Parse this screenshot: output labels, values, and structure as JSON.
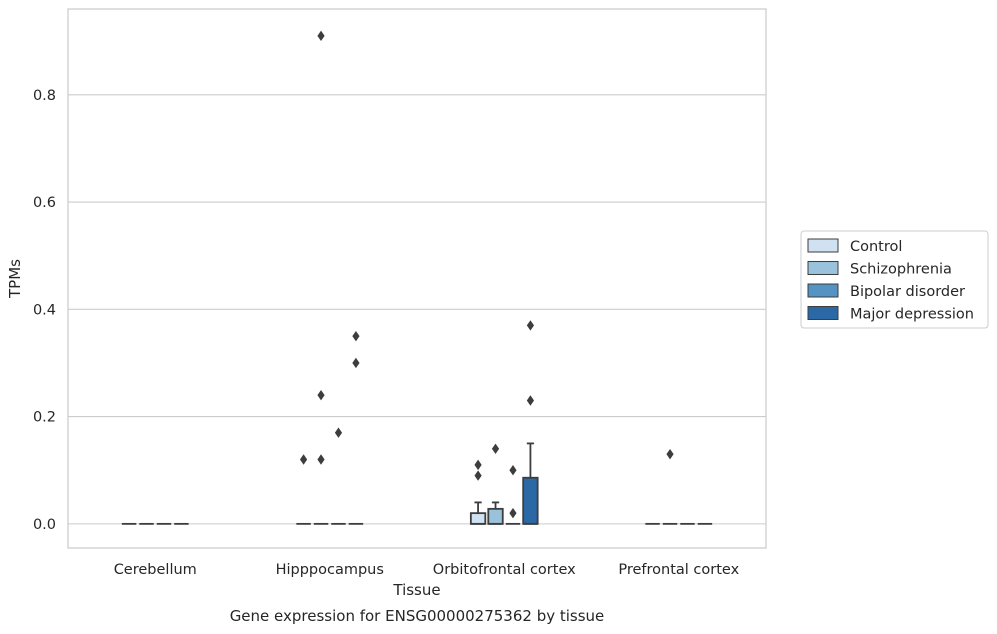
{
  "chart_data": {
    "type": "box",
    "title": "",
    "caption": "Gene expression for ENSG00000275362 by tissue",
    "xlabel": "Tissue",
    "ylabel": "TPMs",
    "ylim": [
      -0.045,
      0.96
    ],
    "yticks": [
      0.0,
      0.2,
      0.4,
      0.6,
      0.8
    ],
    "ytick_labels": [
      "0.0",
      "0.2",
      "0.4",
      "0.6",
      "0.8"
    ],
    "categories": [
      "Cerebellum",
      "Hipppocampus",
      "Orbitofrontal cortex",
      "Prefrontal cortex"
    ],
    "grid": "horizontal",
    "legend_position": "right",
    "series": [
      {
        "name": "Control",
        "color": "#d0e1f2",
        "boxes": [
          {
            "q1": 0,
            "median": 0,
            "q3": 0,
            "whisker_low": 0,
            "whisker_high": 0,
            "outliers": []
          },
          {
            "q1": 0,
            "median": 0,
            "q3": 0,
            "whisker_low": 0,
            "whisker_high": 0,
            "outliers": [
              0.12
            ]
          },
          {
            "q1": 0,
            "median": 0,
            "q3": 0.02,
            "whisker_low": 0,
            "whisker_high": 0.04,
            "outliers": [
              0.09,
              0.11
            ]
          },
          {
            "q1": 0,
            "median": 0,
            "q3": 0,
            "whisker_low": 0,
            "whisker_high": 0,
            "outliers": []
          }
        ]
      },
      {
        "name": "Schizophrenia",
        "color": "#9ac2dd",
        "boxes": [
          {
            "q1": 0,
            "median": 0,
            "q3": 0,
            "whisker_low": 0,
            "whisker_high": 0,
            "outliers": []
          },
          {
            "q1": 0,
            "median": 0,
            "q3": 0,
            "whisker_low": 0,
            "whisker_high": 0,
            "outliers": [
              0.12,
              0.24,
              0.91
            ]
          },
          {
            "q1": 0,
            "median": 0,
            "q3": 0.028,
            "whisker_low": 0,
            "whisker_high": 0.04,
            "outliers": [
              0.14
            ]
          },
          {
            "q1": 0,
            "median": 0,
            "q3": 0,
            "whisker_low": 0,
            "whisker_high": 0,
            "outliers": [
              0.13
            ]
          }
        ]
      },
      {
        "name": "Bipolar disorder",
        "color": "#5493c4",
        "boxes": [
          {
            "q1": 0,
            "median": 0,
            "q3": 0,
            "whisker_low": 0,
            "whisker_high": 0,
            "outliers": []
          },
          {
            "q1": 0,
            "median": 0,
            "q3": 0,
            "whisker_low": 0,
            "whisker_high": 0,
            "outliers": [
              0.17
            ]
          },
          {
            "q1": 0,
            "median": 0,
            "q3": 0,
            "whisker_low": 0,
            "whisker_high": 0,
            "outliers": [
              0.02,
              0.1
            ]
          },
          {
            "q1": 0,
            "median": 0,
            "q3": 0,
            "whisker_low": 0,
            "whisker_high": 0,
            "outliers": []
          }
        ]
      },
      {
        "name": "Major depression",
        "color": "#2a68a6",
        "boxes": [
          {
            "q1": 0,
            "median": 0,
            "q3": 0,
            "whisker_low": 0,
            "whisker_high": 0,
            "outliers": []
          },
          {
            "q1": 0,
            "median": 0,
            "q3": 0,
            "whisker_low": 0,
            "whisker_high": 0,
            "outliers": [
              0.3,
              0.35
            ]
          },
          {
            "q1": 0,
            "median": 0,
            "q3": 0.086,
            "whisker_low": 0,
            "whisker_high": 0.15,
            "outliers": [
              0.23,
              0.37
            ]
          },
          {
            "q1": 0,
            "median": 0,
            "q3": 0,
            "whisker_low": 0,
            "whisker_high": 0,
            "outliers": []
          }
        ]
      }
    ]
  }
}
